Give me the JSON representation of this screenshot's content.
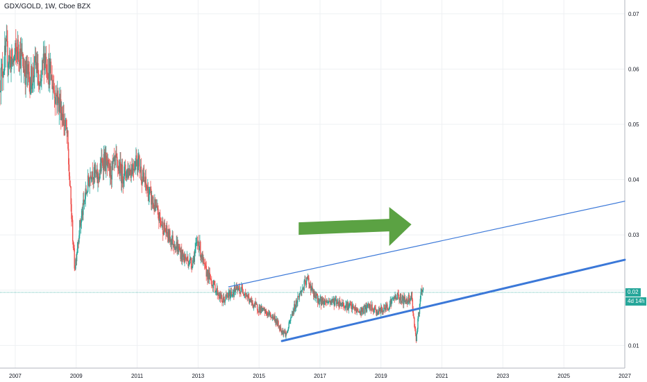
{
  "chart_data": {
    "type": "candlestick",
    "title": "GDX/GOLD, 1W, Cboe BZX",
    "xlim": [
      2006.5,
      2027
    ],
    "ylim": [
      0.0059,
      0.0725
    ],
    "grid": true,
    "colors": {
      "up": "#26a69a",
      "down": "#ef5350",
      "trendline": "#3b78d8",
      "arrow": "#5ba243",
      "last_price": "#26a69a",
      "grid": "#eef0f3"
    },
    "y_ticks": [
      "0.07",
      "0.06",
      "0.05",
      "0.04",
      "0.03",
      "0.02",
      "0.01"
    ],
    "y_tick_values": [
      0.07,
      0.06,
      0.05,
      0.04,
      0.03,
      0.02,
      0.01
    ],
    "x_ticks": [
      "2007",
      "2009",
      "2011",
      "2013",
      "2015",
      "2017",
      "2019",
      "2021",
      "2023",
      "2025",
      "2027"
    ],
    "x_tick_values": [
      2007,
      2009,
      2011,
      2013,
      2015,
      2017,
      2019,
      2021,
      2023,
      2025,
      2027
    ],
    "price_path": [
      [
        2006.5,
        0.058
      ],
      [
        2006.7,
        0.063
      ],
      [
        2006.9,
        0.061
      ],
      [
        2007.1,
        0.064
      ],
      [
        2007.3,
        0.06
      ],
      [
        2007.5,
        0.058
      ],
      [
        2007.7,
        0.061
      ],
      [
        2007.8,
        0.055
      ],
      [
        2007.95,
        0.063
      ],
      [
        2008.1,
        0.06
      ],
      [
        2008.3,
        0.056
      ],
      [
        2008.5,
        0.053
      ],
      [
        2008.7,
        0.048
      ],
      [
        2008.85,
        0.033
      ],
      [
        2008.95,
        0.024
      ],
      [
        2009.1,
        0.031
      ],
      [
        2009.3,
        0.037
      ],
      [
        2009.5,
        0.042
      ],
      [
        2009.7,
        0.04
      ],
      [
        2009.9,
        0.044
      ],
      [
        2010.1,
        0.041
      ],
      [
        2010.3,
        0.043
      ],
      [
        2010.5,
        0.041
      ],
      [
        2010.8,
        0.042
      ],
      [
        2011.0,
        0.044
      ],
      [
        2011.2,
        0.04
      ],
      [
        2011.5,
        0.036
      ],
      [
        2011.8,
        0.032
      ],
      [
        2012.0,
        0.03
      ],
      [
        2012.3,
        0.028
      ],
      [
        2012.5,
        0.026
      ],
      [
        2012.8,
        0.025
      ],
      [
        2013.0,
        0.029
      ],
      [
        2013.2,
        0.024
      ],
      [
        2013.5,
        0.021
      ],
      [
        2013.8,
        0.018
      ],
      [
        2014.0,
        0.019
      ],
      [
        2014.2,
        0.02
      ],
      [
        2014.5,
        0.02
      ],
      [
        2014.7,
        0.018
      ],
      [
        2014.9,
        0.017
      ],
      [
        2015.2,
        0.016
      ],
      [
        2015.5,
        0.015
      ],
      [
        2015.7,
        0.013
      ],
      [
        2015.9,
        0.012
      ],
      [
        2016.1,
        0.016
      ],
      [
        2016.3,
        0.019
      ],
      [
        2016.6,
        0.022
      ],
      [
        2016.8,
        0.019
      ],
      [
        2017.0,
        0.018
      ],
      [
        2017.5,
        0.018
      ],
      [
        2018.0,
        0.017
      ],
      [
        2018.3,
        0.016
      ],
      [
        2018.6,
        0.017
      ],
      [
        2018.9,
        0.016
      ],
      [
        2019.2,
        0.017
      ],
      [
        2019.5,
        0.019
      ],
      [
        2019.8,
        0.018
      ],
      [
        2020.0,
        0.019
      ],
      [
        2020.15,
        0.011
      ],
      [
        2020.3,
        0.019
      ],
      [
        2020.4,
        0.02
      ]
    ],
    "last_price": {
      "value": 0.0196,
      "label": "0.02",
      "countdown": "4d 14h"
    },
    "trendlines": [
      {
        "name": "upper-channel",
        "x": [
          2014.0,
          2027
        ],
        "y": [
          0.0206,
          0.0361
        ],
        "width": 1.2
      },
      {
        "name": "lower-channel",
        "x": [
          2015.75,
          2027
        ],
        "y": [
          0.0108,
          0.0255
        ],
        "width": 3
      }
    ],
    "annotations": [
      {
        "type": "arrow",
        "direction": "right",
        "x_start": 2016.3,
        "x_end": 2020.0,
        "y": 0.0314,
        "color": "#5ba243"
      }
    ]
  }
}
